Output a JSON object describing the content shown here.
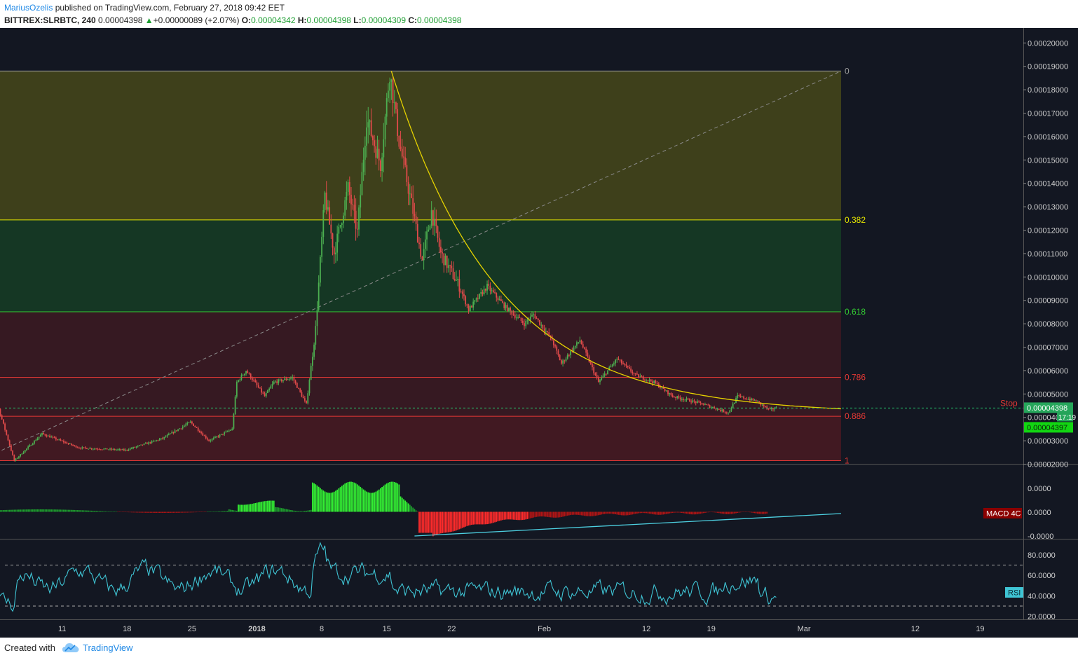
{
  "header": {
    "author": "MariusOzelis",
    "published_text": " published on TradingView.com, February 27, 2018 09:42 EET",
    "symbol": "BITTREX:SLRBTC, 240",
    "last": "0.00004398",
    "change": "+0.00000089 (+2.07%)",
    "o_label": "O:",
    "o_value": "0.00004342",
    "h_label": "H:",
    "h_value": "0.00004398",
    "l_label": "L:",
    "l_value": "0.00004309",
    "c_label": "C:",
    "c_value": "0.00004398"
  },
  "footer": {
    "created_with": "Created with",
    "brand": "TradingView"
  },
  "colors": {
    "background": "#131722",
    "up": "#4caf50",
    "down": "#e04a4a",
    "fib_0": "#9e9e9e",
    "fib_0382": "#e5e500",
    "fib_0618": "#33cc33",
    "fib_0786": "#e53935",
    "fib_0886": "#e53935",
    "fib_1": "#e53935",
    "trend_curve": "#e5d200",
    "macd_trendline": "#4dd0e1",
    "rsi_line": "#3fc4d4",
    "price_badge": "#26a65b"
  },
  "chart_data": [
    {
      "type": "candlestick",
      "panel": "price",
      "symbol": "BITTREX:SLRBTC",
      "interval": "240",
      "y_axis_ticks": [
        "0.00020000",
        "0.00019000",
        "0.00018000",
        "0.00017000",
        "0.00016000",
        "0.00015000",
        "0.00014000",
        "0.00013000",
        "0.00012000",
        "0.00011000",
        "0.00010000",
        "0.00009000",
        "0.00008000",
        "0.00007000",
        "0.00006000",
        "0.00005000",
        "0.00004000",
        "0.00003000",
        "0.00002000"
      ],
      "ylim": [
        1.5e-05,
        0.000202
      ],
      "x_axis_ticks": [
        "11",
        "18",
        "25",
        "2018",
        "8",
        "15",
        "22",
        "Feb",
        "12",
        "19",
        "Mar",
        "12",
        "19"
      ],
      "x_tick_days": [
        -21,
        -14,
        -7,
        0,
        7,
        14,
        21,
        31,
        42,
        49,
        59,
        71,
        78
      ],
      "key_points": [
        {
          "day": -30,
          "price": 4.05e-05
        },
        {
          "day": -28,
          "price": 4.8e-05
        },
        {
          "day": -26,
          "price": 2.15e-05
        },
        {
          "day": -23,
          "price": 3.3e-05
        },
        {
          "day": -19,
          "price": 2.7e-05
        },
        {
          "day": -14,
          "price": 2.6e-05
        },
        {
          "day": -10,
          "price": 3.1e-05
        },
        {
          "day": -7,
          "price": 3.8e-05
        },
        {
          "day": -5,
          "price": 3e-05
        },
        {
          "day": -2.5,
          "price": 3.5e-05
        },
        {
          "day": -2,
          "price": 5.5e-05
        },
        {
          "day": -1,
          "price": 6e-05
        },
        {
          "day": 1,
          "price": 4.9e-05
        },
        {
          "day": 2,
          "price": 5.5e-05
        },
        {
          "day": 4,
          "price": 5.7e-05
        },
        {
          "day": 5.5,
          "price": 4.55e-05
        },
        {
          "day": 6.5,
          "price": 7.8e-05
        },
        {
          "day": 7.5,
          "price": 0.000135
        },
        {
          "day": 8.5,
          "price": 0.00011
        },
        {
          "day": 10,
          "price": 0.000138
        },
        {
          "day": 11,
          "price": 0.000119
        },
        {
          "day": 12,
          "price": 0.000168
        },
        {
          "day": 13.5,
          "price": 0.000148
        },
        {
          "day": 14.5,
          "price": 0.000188
        },
        {
          "day": 15.5,
          "price": 0.000158
        },
        {
          "day": 17,
          "price": 0.000128
        },
        {
          "day": 18,
          "price": 0.000107
        },
        {
          "day": 19,
          "price": 0.000128
        },
        {
          "day": 20,
          "price": 0.00011
        },
        {
          "day": 22,
          "price": 9.6e-05
        },
        {
          "day": 23,
          "price": 8.6e-05
        },
        {
          "day": 25,
          "price": 9.6e-05
        },
        {
          "day": 27,
          "price": 8.7e-05
        },
        {
          "day": 29,
          "price": 8e-05
        },
        {
          "day": 30,
          "price": 8.4e-05
        },
        {
          "day": 32,
          "price": 7.3e-05
        },
        {
          "day": 33,
          "price": 6.3e-05
        },
        {
          "day": 35,
          "price": 7.3e-05
        },
        {
          "day": 37,
          "price": 5.5e-05
        },
        {
          "day": 39,
          "price": 6.5e-05
        },
        {
          "day": 41,
          "price": 5.8e-05
        },
        {
          "day": 43,
          "price": 5.5e-05
        },
        {
          "day": 45,
          "price": 4.9e-05
        },
        {
          "day": 48,
          "price": 4.6e-05
        },
        {
          "day": 51,
          "price": 4.2e-05
        },
        {
          "day": 52,
          "price": 4.9e-05
        },
        {
          "day": 54,
          "price": 4.7e-05
        },
        {
          "day": 55.5,
          "price": 4.3e-05
        },
        {
          "day": 56,
          "price": 4.4e-05
        }
      ],
      "fibonacci_retracement": {
        "high": 0.000188,
        "low": 2.15e-05,
        "start_day": -30,
        "end_day": 63,
        "levels": [
          {
            "ratio": 0,
            "label": "0"
          },
          {
            "ratio": 0.382,
            "label": "0.382"
          },
          {
            "ratio": 0.618,
            "label": "0.618"
          },
          {
            "ratio": 0.786,
            "label": "0.786"
          },
          {
            "ratio": 0.886,
            "label": "0.886"
          },
          {
            "ratio": 1,
            "label": "1"
          }
        ]
      },
      "current_price": "0.00004398",
      "current_price_time": "17:19",
      "second_price": "0.00004397",
      "stop_label": "Stop",
      "stop_level": 4.398e-05
    },
    {
      "type": "bar",
      "panel": "macd",
      "legend": "MACD 4C",
      "y_axis_ticks": [
        "0.0000",
        "0.0000",
        "-0.0000"
      ],
      "trendline": {
        "start_day": 17,
        "end_day": 63
      }
    },
    {
      "type": "line",
      "panel": "rsi",
      "legend": "RSI",
      "y_axis_ticks": [
        "80.0000",
        "60.0000",
        "40.0000",
        "20.0000"
      ],
      "ylim": [
        17,
        95
      ],
      "band_upper": 70,
      "band_lower": 30
    }
  ]
}
